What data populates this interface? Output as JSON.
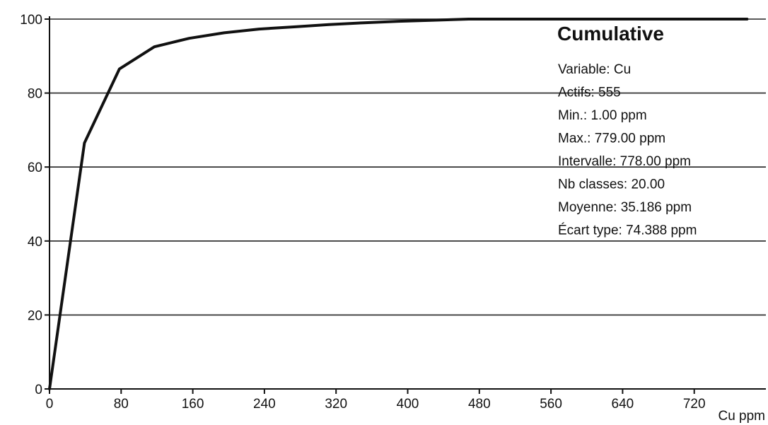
{
  "chart_data": {
    "type": "line",
    "title": "Cumulative",
    "xlabel": "Cu ppm",
    "ylabel": "",
    "xlim": [
      0,
      800
    ],
    "ylim": [
      0,
      100
    ],
    "x_ticks": [
      0,
      80,
      160,
      240,
      320,
      400,
      480,
      560,
      640,
      720
    ],
    "y_ticks": [
      0,
      20,
      40,
      60,
      80,
      100
    ],
    "grid": "horizontal",
    "series": [
      {
        "x": [
          0,
          39,
          78,
          117,
          156,
          195,
          234,
          273,
          312,
          351,
          390,
          429,
          468,
          507,
          546,
          585,
          624,
          663,
          702,
          741,
          779
        ],
        "values": [
          0,
          66.5,
          86.5,
          92.5,
          94.8,
          96.3,
          97.3,
          97.9,
          98.5,
          99.0,
          99.4,
          99.7,
          100,
          100,
          100,
          100,
          100,
          100,
          100,
          100,
          100
        ]
      }
    ],
    "info_box": {
      "title": "Cumulative",
      "lines": [
        "Variable: Cu",
        "Actifs: 555",
        "Min.: 1.00 ppm",
        "Max.: 779.00 ppm",
        "Intervalle: 778.00 ppm",
        "Nb classes: 20.00",
        "Moyenne: 35.186 ppm",
        "Écart type: 74.388 ppm"
      ]
    }
  }
}
